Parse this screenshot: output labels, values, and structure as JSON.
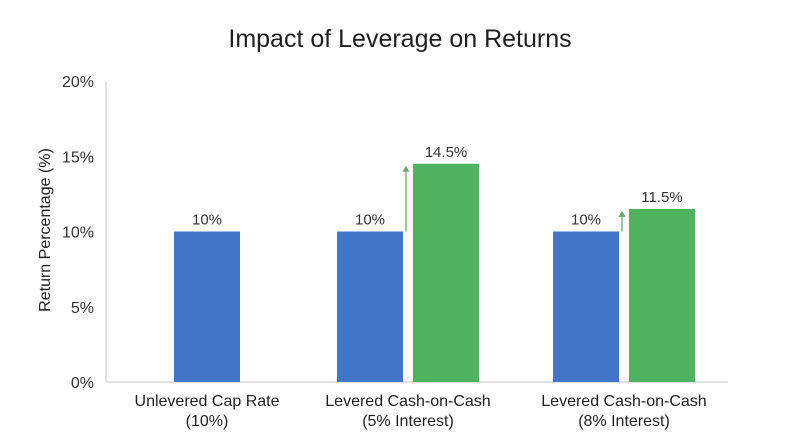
{
  "chart_data": {
    "type": "bar",
    "title": "Impact of Leverage on Returns",
    "xlabel": "",
    "ylabel": "Return Percentage (%)",
    "ylim": [
      0,
      20
    ],
    "yticks": [
      0,
      5,
      10,
      15,
      20
    ],
    "ytick_labels": [
      "0%",
      "5%",
      "10%",
      "15%",
      "20%"
    ],
    "grid": false,
    "legend": "none",
    "categories": [
      [
        "Unlevered Cap Rate",
        "(10%)"
      ],
      [
        "Levered Cash-on-Cash",
        "(5% Interest)"
      ],
      [
        "Levered Cash-on-Cash",
        "(8% Interest)"
      ]
    ],
    "bars": [
      {
        "category_index": 0,
        "value": 10,
        "label": "10%",
        "color": "#4075c8"
      },
      {
        "category_index": 1,
        "value": 10,
        "label": "10%",
        "color": "#4075c8"
      },
      {
        "category_index": 1,
        "value": 14.5,
        "label": "14.5%",
        "color": "#4fb25f"
      },
      {
        "category_index": 2,
        "value": 10,
        "label": "10%",
        "color": "#4075c8"
      },
      {
        "category_index": 2,
        "value": 11.5,
        "label": "11.5%",
        "color": "#4fb25f"
      }
    ],
    "arrows": [
      {
        "category_index": 1,
        "from": 10,
        "to": 14.5,
        "color": "#6aa86f"
      },
      {
        "category_index": 2,
        "from": 10,
        "to": 11.5,
        "color": "#6aa86f"
      }
    ],
    "axis_color": "#cfcfcf"
  }
}
